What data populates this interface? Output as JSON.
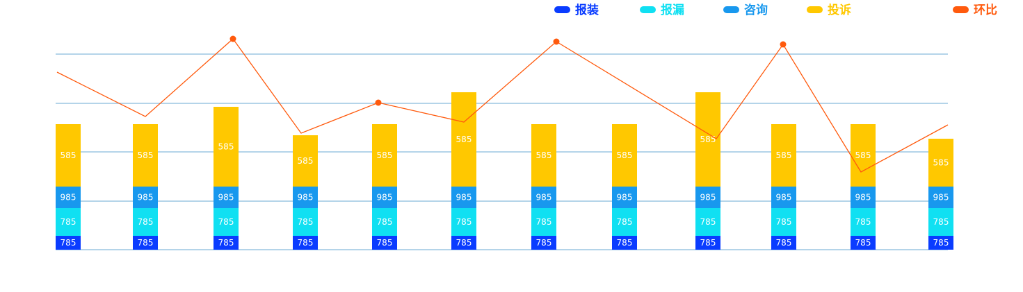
{
  "chart_data": {
    "type": "bar",
    "stacked": true,
    "title": "",
    "xlabel": "",
    "ylabel": "",
    "grid": true,
    "legend_position": "top-right",
    "categories": [
      "",
      "",
      "",
      "",
      "",
      "",
      "",
      "",
      "",
      "",
      "",
      ""
    ],
    "series": [
      {
        "name": "报装",
        "color": "#0a3cff",
        "values": [
          785,
          785,
          785,
          785,
          785,
          785,
          785,
          785,
          785,
          785,
          785,
          785
        ],
        "labels": [
          "785",
          "785",
          "785",
          "785",
          "785",
          "785",
          "785",
          "785",
          "785",
          "785",
          "785",
          "785"
        ]
      },
      {
        "name": "报漏",
        "color": "#10e0f2",
        "values": [
          785,
          785,
          785,
          785,
          785,
          785,
          785,
          785,
          785,
          785,
          785,
          785
        ],
        "labels": [
          "785",
          "785",
          "785",
          "785",
          "785",
          "785",
          "785",
          "785",
          "785",
          "785",
          "785",
          "785"
        ]
      },
      {
        "name": "咨询",
        "color": "#1898ee",
        "values": [
          985,
          985,
          985,
          985,
          985,
          985,
          985,
          985,
          985,
          985,
          985,
          985
        ],
        "labels": [
          "985",
          "985",
          "985",
          "985",
          "985",
          "985",
          "985",
          "985",
          "985",
          "985",
          "985",
          "985"
        ]
      },
      {
        "name": "投诉",
        "color": "#ffc800",
        "values": [
          585,
          585,
          585,
          585,
          585,
          585,
          585,
          585,
          585,
          585,
          585,
          585
        ],
        "labels": [
          "585",
          "585",
          "585",
          "585",
          "585",
          "585",
          "585",
          "585",
          "585",
          "585",
          "585",
          "585"
        ]
      },
      {
        "name": "环比",
        "color": "#ff5a0d",
        "type": "line",
        "values": [
          3.2,
          2.4,
          3.8,
          2.1,
          2.65,
          2.3,
          3.75,
          null,
          2.0,
          3.7,
          1.4,
          2.25
        ],
        "markers": [
          false,
          false,
          true,
          false,
          true,
          false,
          true,
          false,
          false,
          true,
          false,
          false
        ]
      }
    ]
  }
}
